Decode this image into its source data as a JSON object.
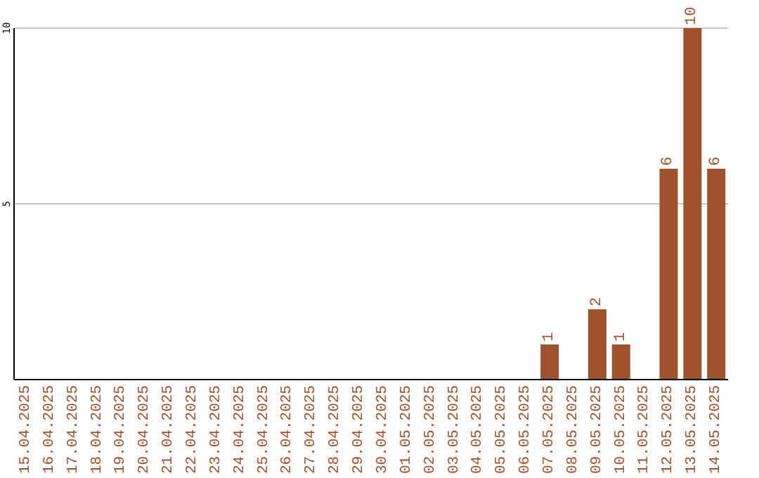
{
  "chart_data": {
    "type": "bar",
    "categories": [
      "15.04.2025",
      "16.04.2025",
      "17.04.2025",
      "18.04.2025",
      "19.04.2025",
      "20.04.2025",
      "21.04.2025",
      "22.04.2025",
      "23.04.2025",
      "24.04.2025",
      "25.04.2025",
      "26.04.2025",
      "27.04.2025",
      "28.04.2025",
      "29.04.2025",
      "30.04.2025",
      "01.05.2025",
      "02.05.2025",
      "03.05.2025",
      "04.05.2025",
      "05.05.2025",
      "06.05.2025",
      "07.05.2025",
      "08.05.2025",
      "09.05.2025",
      "10.05.2025",
      "11.05.2025",
      "12.05.2025",
      "13.05.2025",
      "14.05.2025"
    ],
    "values": [
      0,
      0,
      0,
      0,
      0,
      0,
      0,
      0,
      0,
      0,
      0,
      0,
      0,
      0,
      0,
      0,
      0,
      0,
      0,
      0,
      0,
      0,
      1,
      0,
      2,
      1,
      0,
      6,
      10,
      6
    ],
    "value_labels": [
      null,
      null,
      null,
      null,
      null,
      null,
      null,
      null,
      null,
      null,
      null,
      null,
      null,
      null,
      null,
      null,
      null,
      null,
      null,
      null,
      null,
      null,
      "1",
      null,
      "2",
      "1",
      null,
      "6",
      "10",
      "6"
    ],
    "color": "#a0522d",
    "ylim": [
      0,
      10
    ],
    "yticks": [
      5,
      10
    ],
    "grid": "y"
  }
}
